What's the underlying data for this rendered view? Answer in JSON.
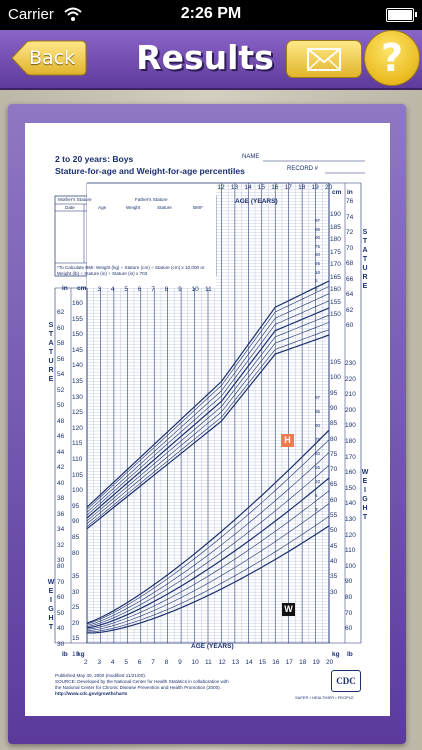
{
  "status_bar": {
    "carrier": "Carrier",
    "time": "2:26 PM"
  },
  "nav": {
    "back_label": "Back",
    "title": "Results",
    "mail_icon": "envelope-icon",
    "help_label": "?"
  },
  "colors": {
    "nav_purple": "#6b46ad",
    "button_gold": "#f2cf4a",
    "chart_ink": "#1a2f6e",
    "height_marker": "#f07b50",
    "weight_marker": "#111111"
  },
  "chart": {
    "title_line1": "2 to 20 years: Boys",
    "title_line2": "Stature-for-age and Weight-for-age percentiles",
    "name_label": "NAME",
    "record_label": "RECORD #",
    "table_headers": {
      "mother": "Mother's Stature",
      "father": "Father's Stature",
      "date": "Date",
      "age": "Age",
      "weight": "Weight",
      "stature": "Stature",
      "bmi": "BMI*"
    },
    "bmi_note": "*To Calculate BMI: Weight (kg) ÷ Stature (cm) ÷ Stature (cm) x 10,000 or Weight (lb) ÷ Stature (in) ÷ Stature (in) x 703",
    "age_axis_label": "AGE (YEARS)",
    "upper_age_ticks": [
      "12",
      "13",
      "14",
      "15",
      "16",
      "17",
      "18",
      "19",
      "20"
    ],
    "left_age_ticks": [
      "3",
      "4",
      "5",
      "6",
      "7",
      "8",
      "9",
      "10",
      "11"
    ],
    "bottom_age_ticks": [
      "2",
      "3",
      "4",
      "5",
      "6",
      "7",
      "8",
      "9",
      "10",
      "11",
      "12",
      "13",
      "14",
      "15",
      "16",
      "17",
      "18",
      "19",
      "20"
    ],
    "stature_label": "STATURE",
    "weight_label": "WEIGHT",
    "unit_in": "in",
    "unit_cm": "cm",
    "unit_lb": "lb",
    "unit_kg": "kg",
    "stature_in_ticks": [
      "62",
      "60",
      "58",
      "56",
      "54",
      "52",
      "50",
      "48",
      "46",
      "44",
      "42",
      "40",
      "38",
      "36",
      "34",
      "32",
      "30"
    ],
    "stature_cm_left": [
      "160",
      "155",
      "150",
      "145",
      "140",
      "135",
      "130",
      "125",
      "120",
      "115",
      "110",
      "105",
      "100",
      "95",
      "90",
      "85",
      "80"
    ],
    "stature_cm_right": [
      "190",
      "185",
      "180",
      "175",
      "170",
      "165",
      "160",
      "155",
      "150"
    ],
    "stature_in_right": [
      "76",
      "74",
      "72",
      "70",
      "68",
      "66",
      "64",
      "62",
      "60"
    ],
    "weight_kg_right": [
      "105",
      "100",
      "95",
      "90",
      "85",
      "80",
      "75",
      "70",
      "65",
      "60",
      "55",
      "50",
      "45",
      "40",
      "35",
      "30"
    ],
    "weight_lb_right": [
      "230",
      "220",
      "210",
      "200",
      "190",
      "180",
      "170",
      "160",
      "150",
      "140",
      "130",
      "120",
      "110",
      "100",
      "90",
      "80",
      "70",
      "60"
    ],
    "weight_lb_left": [
      "80",
      "70",
      "60",
      "50",
      "40",
      "30"
    ],
    "weight_kg_left": [
      "35",
      "30",
      "25",
      "20",
      "15",
      "10"
    ],
    "percentile_labels": [
      "97",
      "95",
      "90",
      "75",
      "50",
      "25",
      "10",
      "5",
      "3"
    ],
    "markers": {
      "height": "H",
      "weight": "W"
    },
    "footer_line1": "Published May 30, 2000 (modified 11/21/00).",
    "footer_line2": "SOURCE: Developed by the National Center for Health Statistics in collaboration with",
    "footer_line3": "the National Center for Chronic Disease Prevention and Health Promotion (2000).",
    "footer_url": "http://www.cdc.gov/growthcharts",
    "cdc_logo_text": "CDC",
    "cdc_tagline": "SAFER • HEALTHIER • PEOPLE"
  }
}
